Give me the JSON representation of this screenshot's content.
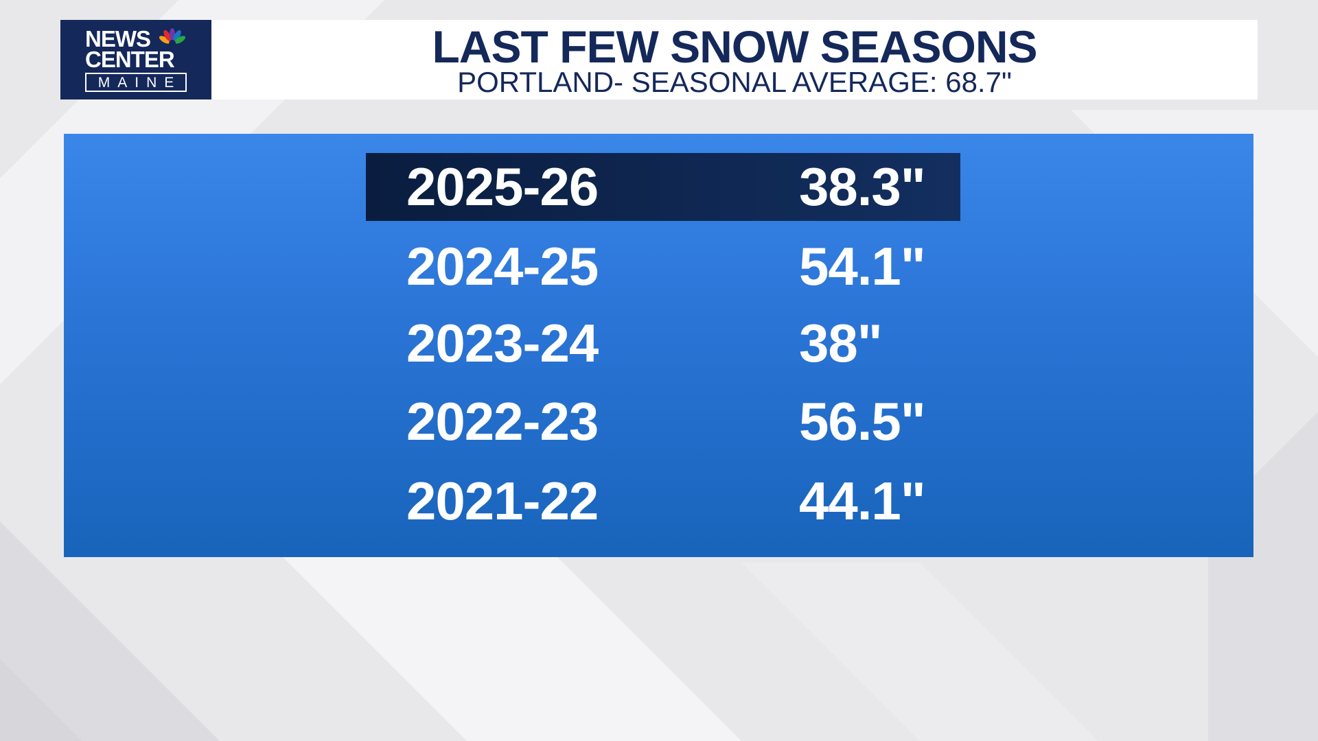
{
  "header": {
    "logo": {
      "line1": "NEWS",
      "line2": "CENTER",
      "line3": "MAINE",
      "icon": "peacock-icon"
    },
    "title": "LAST FEW SNOW SEASONS",
    "subtitle": "PORTLAND- SEASONAL AVERAGE: 68.7\""
  },
  "table": {
    "rows": [
      {
        "season": "2025-26",
        "amount": "38.3\"",
        "highlighted": true
      },
      {
        "season": "2024-25",
        "amount": "54.1\""
      },
      {
        "season": "2023-24",
        "amount": "38\""
      },
      {
        "season": "2022-23",
        "amount": "56.5\""
      },
      {
        "season": "2021-22",
        "amount": "44.1\""
      }
    ]
  },
  "colors": {
    "navy": "#14285a",
    "panel_top": "#3a86e9",
    "panel_bottom": "#1864ba",
    "highlight": "#0a1d3f",
    "text_on_panel": "#ffffff"
  }
}
